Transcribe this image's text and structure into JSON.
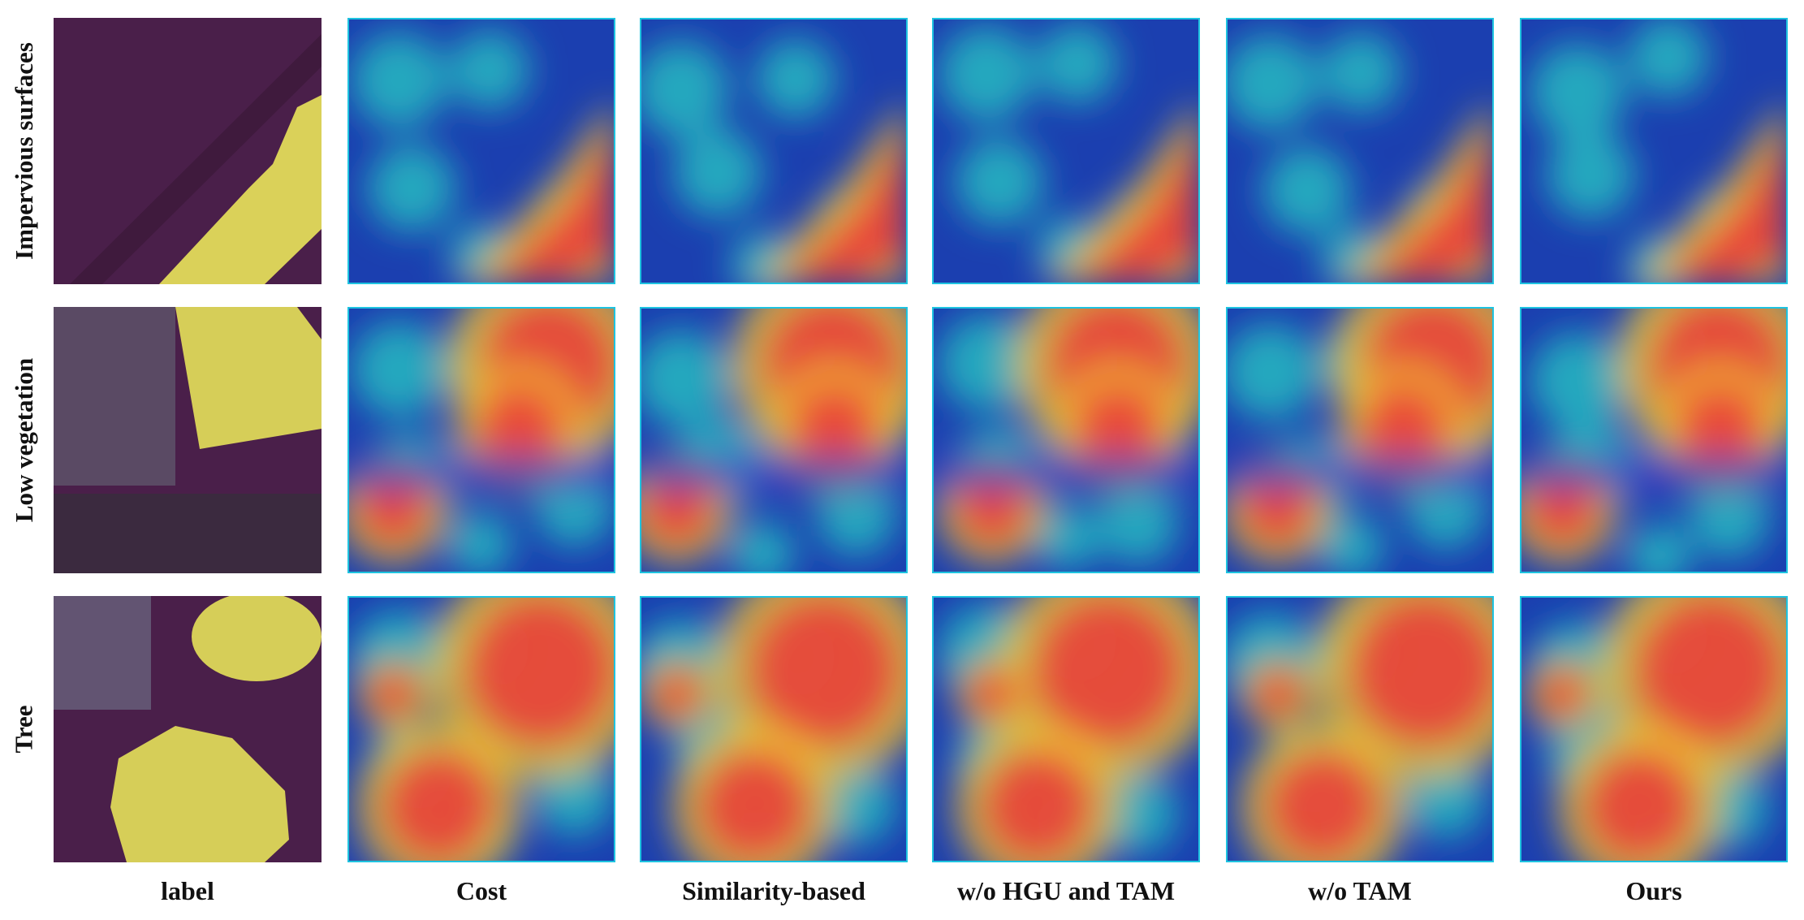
{
  "row_labels": [
    "Impervious surfaces",
    "Low vegetation",
    "Tree"
  ],
  "column_labels": [
    "label",
    "Cost",
    "Similarity-based",
    "w/o HGU and TAM",
    "w/o TAM",
    "Ours"
  ],
  "colors": {
    "overlay_purple": "#4a1f4a",
    "label_yellow": "#e6e15a",
    "heat_low": "#1b3fb0",
    "heat_mid": "#27c2c2",
    "heat_high": "#e8403a",
    "tile_border": "#1ec3e0"
  }
}
